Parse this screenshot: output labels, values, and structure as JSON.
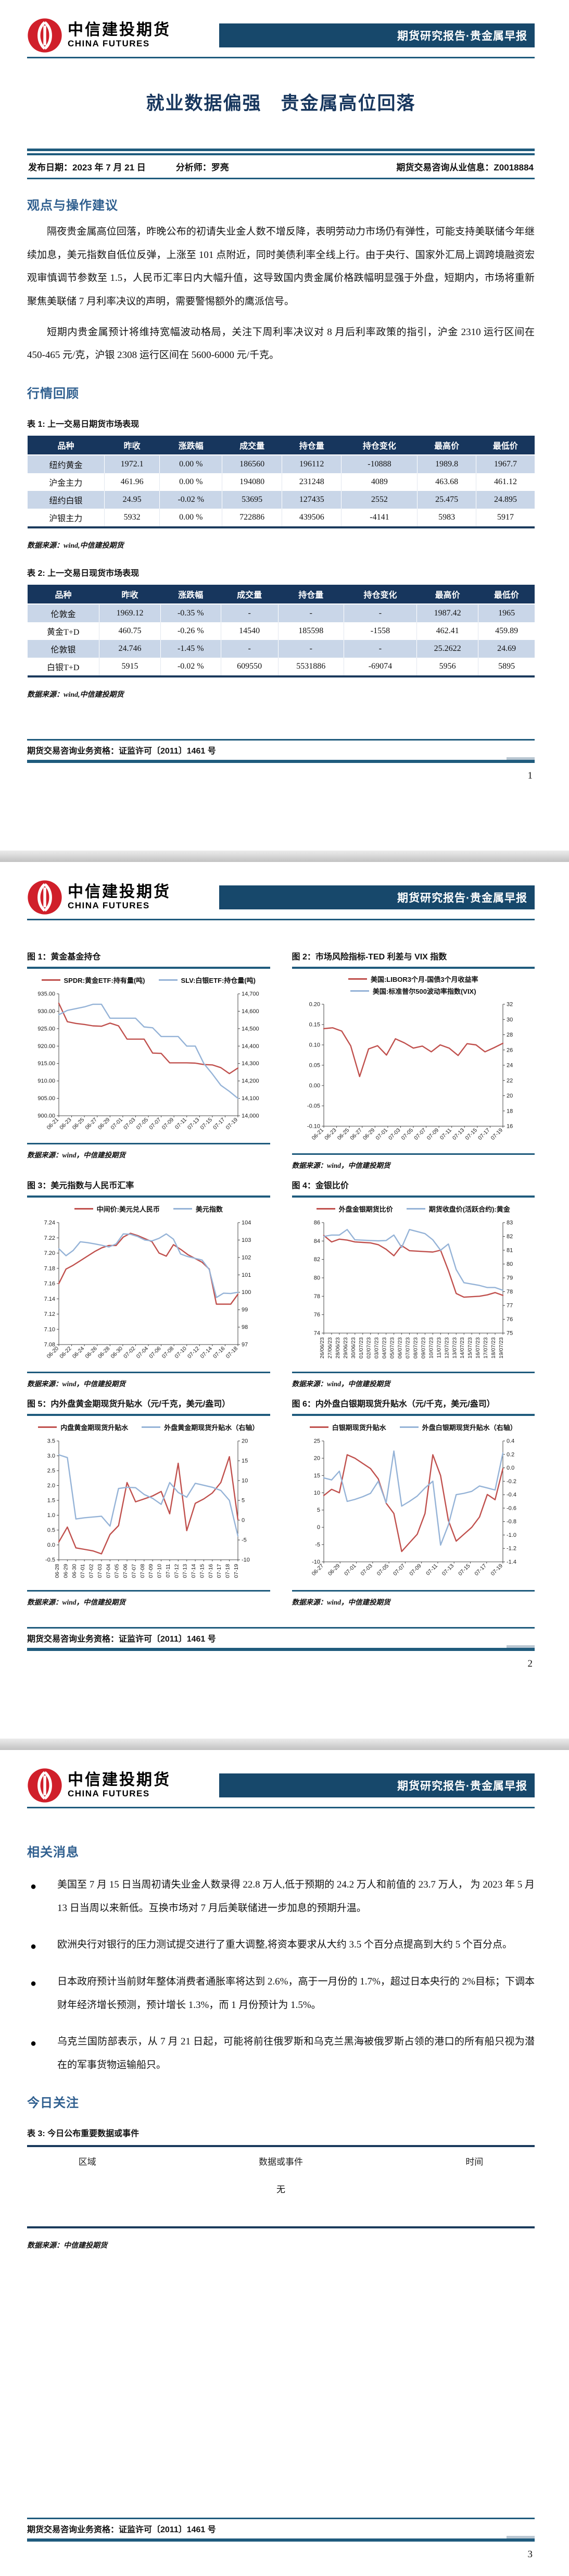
{
  "report": {
    "brand": {
      "name_cn": "中信建投期货",
      "name_en": "CHINA FUTURES",
      "banner": "期货研究报告·贵金属早报"
    },
    "title": "就业数据偏强　贵金属高位回落",
    "meta": {
      "publish_label": "发布日期：",
      "publish_date": "2023 年 7 月 21 日",
      "analyst_label": "分析师：",
      "analyst": "罗亮",
      "license_label": "期货交易咨询从业信息：",
      "license": "Z0018884"
    },
    "footer": {
      "qualification": "期货交易咨询业务资格：证监许可〔2011〕1461 号",
      "pages": [
        "1",
        "2",
        "3"
      ]
    }
  },
  "page1": {
    "section1_title": "观点与操作建议",
    "paragraphs": [
      "隔夜贵金属高位回落，昨晚公布的初请失业金人数不增反降，表明劳动力市场仍有弹性，可能支持美联储今年继续加息，美元指数自低位反弹，上涨至 101 点附近，同时美债利率全线上行。由于央行、国家外汇局上调跨境融资宏观审慎调节参数至 1.5，人民币汇率日内大幅升值，这导致国内贵金属价格跌幅明显强于外盘，短期内，市场将重新聚焦美联储 7 月利率决议的声明，需要警惕额外的鹰派信号。",
      "短期内贵金属预计将维持宽幅波动格局，关注下周利率决议对 8 月后利率政策的指引，沪金 2310 运行区间在 450-465 元/克，沪银 2308 运行区间在 5600-6000 元/千克。"
    ],
    "section2_title": "行情回顾",
    "table1": {
      "caption": "表 1: 上一交易日期货市场表现",
      "headers": [
        "品种",
        "昨收",
        "涨跌幅",
        "成交量",
        "持仓量",
        "持仓变化",
        "最高价",
        "最低价"
      ],
      "rows": [
        [
          "纽约黄金",
          "1972.1",
          "0.00 %",
          "186560",
          "196112",
          "-10888",
          "1989.8",
          "1967.7"
        ],
        [
          "沪金主力",
          "461.96",
          "0.00 %",
          "194080",
          "231248",
          "4089",
          "463.68",
          "461.12"
        ],
        [
          "纽约白银",
          "24.95",
          "-0.02 %",
          "53695",
          "127435",
          "2552",
          "25.475",
          "24.895"
        ],
        [
          "沪银主力",
          "5932",
          "0.00 %",
          "722886",
          "439506",
          "-4141",
          "5983",
          "5917"
        ]
      ],
      "source": "数据来源：wind,中信建投期货"
    },
    "table2": {
      "caption": "表 2: 上一交易日现货市场表现",
      "headers": [
        "品种",
        "昨收",
        "涨跌幅",
        "成交量",
        "持仓量",
        "持仓变化",
        "最高价",
        "最低价"
      ],
      "rows": [
        [
          "伦敦金",
          "1969.12",
          "-0.35 %",
          "-",
          "-",
          "-",
          "1987.42",
          "1965"
        ],
        [
          "黄金T+D",
          "460.75",
          "-0.26 %",
          "14540",
          "185598",
          "-1558",
          "462.41",
          "459.89"
        ],
        [
          "伦敦银",
          "24.746",
          "-1.45 %",
          "-",
          "-",
          "-",
          "25.2622",
          "24.69"
        ],
        [
          "白银T+D",
          "5915",
          "-0.02 %",
          "609550",
          "5531886",
          "-69074",
          "5956",
          "5895"
        ]
      ],
      "source": "数据来源：wind,中信建投期货"
    }
  },
  "page2": {
    "figures": [
      {
        "caption": "图 1：黄金基金持仓",
        "source": "数据来源：wind，中信建投期货",
        "chart": {
          "type": "line",
          "x_labels": [
            "06-21",
            "06-23",
            "06-25",
            "06-27",
            "06-29",
            "07-01",
            "07-03",
            "07-05",
            "07-07",
            "07-09",
            "07-11",
            "07-13",
            "07-15",
            "07-17",
            "07-19"
          ],
          "x_rotate": -45,
          "bottom_margin": 48,
          "left_axis": {
            "min": 900,
            "max": 935,
            "step": 5,
            "decimals": 2
          },
          "right_axis": {
            "min": 14000,
            "max": 14700,
            "step": 100,
            "decimals": 0,
            "thousands": true
          },
          "series": [
            {
              "name": "SPDR:黄金ETF:持有量(吨)",
              "color": "#C0504D",
              "axis": "left",
              "values": [
                932.3,
                927.0,
                926.5,
                926.2,
                925.8,
                925.7,
                926.6,
                925.8,
                922.0,
                922.0,
                922.0,
                918.0,
                917.9,
                915.2,
                915.2,
                915.2,
                915.1,
                914.7,
                914.6,
                913.8,
                912.1,
                913.7
              ]
            },
            {
              "name": "SLV:白银ETF:持仓量(吨)",
              "color": "#95B3D7",
              "axis": "right",
              "values": [
                14580,
                14605,
                14615,
                14625,
                14640,
                14640,
                14560,
                14560,
                14560,
                14560,
                14510,
                14505,
                14455,
                14455,
                14455,
                14400,
                14400,
                14300,
                14240,
                14175,
                14140,
                14100
              ]
            }
          ]
        }
      },
      {
        "caption": "图 2：市场风险指标-TED 利差与 VIX 指数",
        "source": "数据来源：wind，中信建投期货",
        "chart": {
          "type": "line",
          "legend_stack": true,
          "x_labels": [
            "06-21",
            "06-23",
            "06-25",
            "06-27",
            "06-29",
            "07-01",
            "07-03",
            "07-05",
            "07-07",
            "07-09",
            "07-11",
            "07-13",
            "07-15",
            "07-17",
            "07-19"
          ],
          "x_rotate": -45,
          "bottom_margin": 48,
          "left_axis": {
            "min": -0.1,
            "max": 0.2,
            "step": 0.05,
            "decimals": 2
          },
          "right_axis": {
            "min": 16,
            "max": 32,
            "step": 2,
            "decimals": 0
          },
          "series": [
            {
              "name": "美国:LIBOR3个月-国债3个月收益率",
              "color": "#C0504D",
              "axis": "left",
              "values": [
                0.14,
                0.142,
                0.134,
                0.098,
                0.022,
                0.09,
                0.098,
                0.075,
                0.115,
                0.105,
                0.092,
                0.097,
                0.083,
                0.1,
                0.092,
                0.074,
                0.103,
                0.1,
                0.083,
                0.093,
                0.104
              ]
            },
            {
              "name": "美国:标准普尔500波动率指数(VIX)",
              "color": "#95B3D7",
              "axis": "right",
              "values": []
            }
          ]
        }
      },
      {
        "caption": "图 3：美元指数与人民币汇率",
        "source": "数据来源：wind，中信建投期货",
        "chart": {
          "type": "line",
          "x_labels": [
            "06-20",
            "06-22",
            "06-24",
            "06-26",
            "06-28",
            "06-30",
            "07-02",
            "07-04",
            "07-06",
            "07-08",
            "07-10",
            "07-12",
            "07-14",
            "07-16",
            "07-18"
          ],
          "x_rotate": -45,
          "bottom_margin": 48,
          "left_axis": {
            "min": 7.08,
            "max": 7.24,
            "step": 0.02,
            "decimals": 2
          },
          "right_axis": {
            "min": 97,
            "max": 104,
            "step": 1,
            "decimals": 0
          },
          "series": [
            {
              "name": "中间价:美元兑人民币",
              "color": "#C0504D",
              "axis": "left",
              "values": [
                7.16,
                7.179,
                7.184,
                7.19,
                7.196,
                7.202,
                7.207,
                7.21,
                7.21,
                7.221,
                7.226,
                7.223,
                7.219,
                7.215,
                7.2,
                7.196,
                7.211,
                7.205,
                7.198,
                7.193,
                7.188,
                7.179,
                7.133,
                7.133,
                7.133,
                7.146
              ]
            },
            {
              "name": "美元指数",
              "color": "#95B3D7",
              "axis": "right",
              "values": [
                102.5,
                102.1,
                102.4,
                102.9,
                102.85,
                102.78,
                102.7,
                102.6,
                102.78,
                103.35,
                103.33,
                103.2,
                103.0,
                102.95,
                103.1,
                103.35,
                103.05,
                102.2,
                102.05,
                101.95,
                101.85,
                101.3,
                99.7,
                99.95,
                99.93,
                100.0
              ]
            }
          ]
        }
      },
      {
        "caption": "图 4：金银比价",
        "source": "数据来源：wind，中信建投期货",
        "chart": {
          "type": "line",
          "x_labels": [
            "26/06/23",
            "27/06/23",
            "28/06/23",
            "29/06/23",
            "30/06/23",
            "01/07/23",
            "02/07/23",
            "03/07/23",
            "04/07/23",
            "05/07/23",
            "06/07/23",
            "07/07/23",
            "08/07/23",
            "09/07/23",
            "10/07/23",
            "11/07/23",
            "12/07/23",
            "13/07/23",
            "14/07/23",
            "15/07/23",
            "16/07/23",
            "17/07/23",
            "18/07/23",
            "19/07/23"
          ],
          "x_rotate": -90,
          "bottom_margin": 70,
          "left_axis": {
            "min": 74,
            "max": 86,
            "step": 2,
            "decimals": 0
          },
          "right_axis": {
            "min": 75,
            "max": 83,
            "step": 1,
            "decimals": 0
          },
          "series": [
            {
              "name": "外盘金银期货比价",
              "color": "#C0504D",
              "axis": "left",
              "values": [
                84.6,
                83.9,
                84.2,
                84.1,
                83.9,
                83.85,
                83.8,
                83.6,
                83.1,
                82.4,
                83.5,
                82.95,
                82.9,
                82.85,
                82.8,
                83.0,
                80.8,
                78.3,
                77.9,
                77.95,
                78.0,
                78.15,
                78.4,
                78.1
              ]
            },
            {
              "name": "期货收盘价(活跃合约):黄金",
              "color": "#95B3D7",
              "axis": "right",
              "values": [
                82.0,
                82.1,
                82.1,
                82.5,
                81.75,
                81.73,
                81.7,
                81.68,
                81.7,
                82.1,
                81.2,
                82.5,
                82.35,
                82.2,
                81.75,
                81.0,
                81.45,
                79.6,
                78.65,
                78.55,
                78.45,
                78.3,
                78.3,
                78.1
              ]
            }
          ]
        }
      },
      {
        "caption": "图 5：内外盘黄金期现货升贴水（元/千克，美元/盎司）",
        "source": "数据来源：wind，中信建投期货",
        "chart": {
          "type": "line",
          "x_labels": [
            "06-28",
            "06-29",
            "06-30",
            "07-01",
            "07-02",
            "07-03",
            "07-04",
            "07-05",
            "07-06",
            "07-07",
            "07-08",
            "07-09",
            "07-10",
            "07-11",
            "07-12",
            "07-13",
            "07-14",
            "07-15",
            "07-16",
            "07-17",
            "07-18",
            "07-19"
          ],
          "x_rotate": -90,
          "bottom_margin": 54,
          "left_axis": {
            "min": -0.5,
            "max": 3.5,
            "step": 0.5,
            "decimals": 1
          },
          "right_axis": {
            "min": -10,
            "max": 20,
            "step": 5,
            "decimals": 0
          },
          "series": [
            {
              "name": "内盘黄金期现货升贴水",
              "color": "#C0504D",
              "axis": "left",
              "values": [
                0.1,
                0.6,
                -0.1,
                -0.15,
                -0.2,
                -0.3,
                0.35,
                0.65,
                2.1,
                1.45,
                1.55,
                1.65,
                1.8,
                1.05,
                2.75,
                0.48,
                1.4,
                1.55,
                1.75,
                2.1,
                2.97,
                0.85
              ]
            },
            {
              "name": "外盘黄金期现货升贴水（右轴）",
              "color": "#95B3D7",
              "axis": "right",
              "values": [
                16.5,
                15.8,
                0.3,
                0.6,
                0.8,
                1.0,
                -1.5,
                8.0,
                8.3,
                8.2,
                6.5,
                5.5,
                4.0,
                9.5,
                7.0,
                5.8,
                9.3,
                8.8,
                8.3,
                7.5,
                5.0,
                -4.0
              ]
            }
          ]
        }
      },
      {
        "caption": "图 6：内外盘白银期现货升贴水（元/千克，美元/盎司）",
        "source": "数据来源：wind，中信建投期货",
        "chart": {
          "type": "line",
          "x_labels": [
            "06-27",
            "06-29",
            "07-01",
            "07-03",
            "07-05",
            "07-07",
            "07-09",
            "07-11",
            "07-13",
            "07-15",
            "07-17",
            "07-19"
          ],
          "x_rotate": -45,
          "bottom_margin": 50,
          "left_axis": {
            "min": -10,
            "max": 25,
            "step": 5,
            "decimals": 0
          },
          "right_axis": {
            "min": -1.4,
            "max": 0.4,
            "step": 0.2,
            "decimals": 1
          },
          "series": [
            {
              "name": "白银期现货升贴水",
              "color": "#C0504D",
              "axis": "left",
              "values": [
                9.2,
                11,
                10,
                21,
                20,
                18.5,
                17,
                14,
                7,
                4,
                -7,
                -4.5,
                -2,
                4,
                21,
                15,
                2,
                -4,
                -2,
                0,
                3,
                9.5,
                8,
                17
              ]
            },
            {
              "name": "外盘白银期现货升贴水（右轴）",
              "color": "#95B3D7",
              "axis": "right",
              "values": [
                -0.15,
                -0.18,
                -0.05,
                -0.5,
                -0.47,
                -0.43,
                -0.38,
                -0.2,
                -0.52,
                0.25,
                -0.57,
                -0.5,
                -0.42,
                -0.3,
                -0.2,
                -1.15,
                -0.85,
                -0.4,
                -0.38,
                -0.35,
                -0.27,
                -0.3,
                -0.33,
                0.22
              ]
            }
          ]
        }
      }
    ]
  },
  "page3": {
    "news_title": "相关消息",
    "bullets": [
      "美国至 7 月 15 日当周初请失业金人数录得 22.8 万人,低于预期的 24.2 万人和前值的 23.7 万人， 为 2023 年 5 月 13 日当周以来新低。互换市场对 7 月后美联储进一步加息的预期升温。",
      "欧洲央行对银行的压力测试提交进行了重大调整,将资本要求从大约 3.5 个百分点提高到大约 5 个百分点。",
      "日本政府预计当前财年整体消费者通胀率将达到 2.6%，高于一月份的 1.7%，超过日本央行的 2%目标；下调本财年经济增长预测，预计增长 1.3%，而 1 月份预计为 1.5%。",
      "乌克兰国防部表示，从 7 月 21 日起，可能将前往俄罗斯和乌克兰黑海被俄罗斯占领的港口的所有船只视为潜在的军事货物运输船只。"
    ],
    "focus_title": "今日关注",
    "table3": {
      "caption": "表 3: 今日公布重要数据或事件",
      "headers": [
        "区域",
        "数据或事件",
        "时间"
      ],
      "rows": [
        [
          "",
          "无",
          ""
        ]
      ],
      "source": "数据来源：中信建投期货"
    }
  }
}
